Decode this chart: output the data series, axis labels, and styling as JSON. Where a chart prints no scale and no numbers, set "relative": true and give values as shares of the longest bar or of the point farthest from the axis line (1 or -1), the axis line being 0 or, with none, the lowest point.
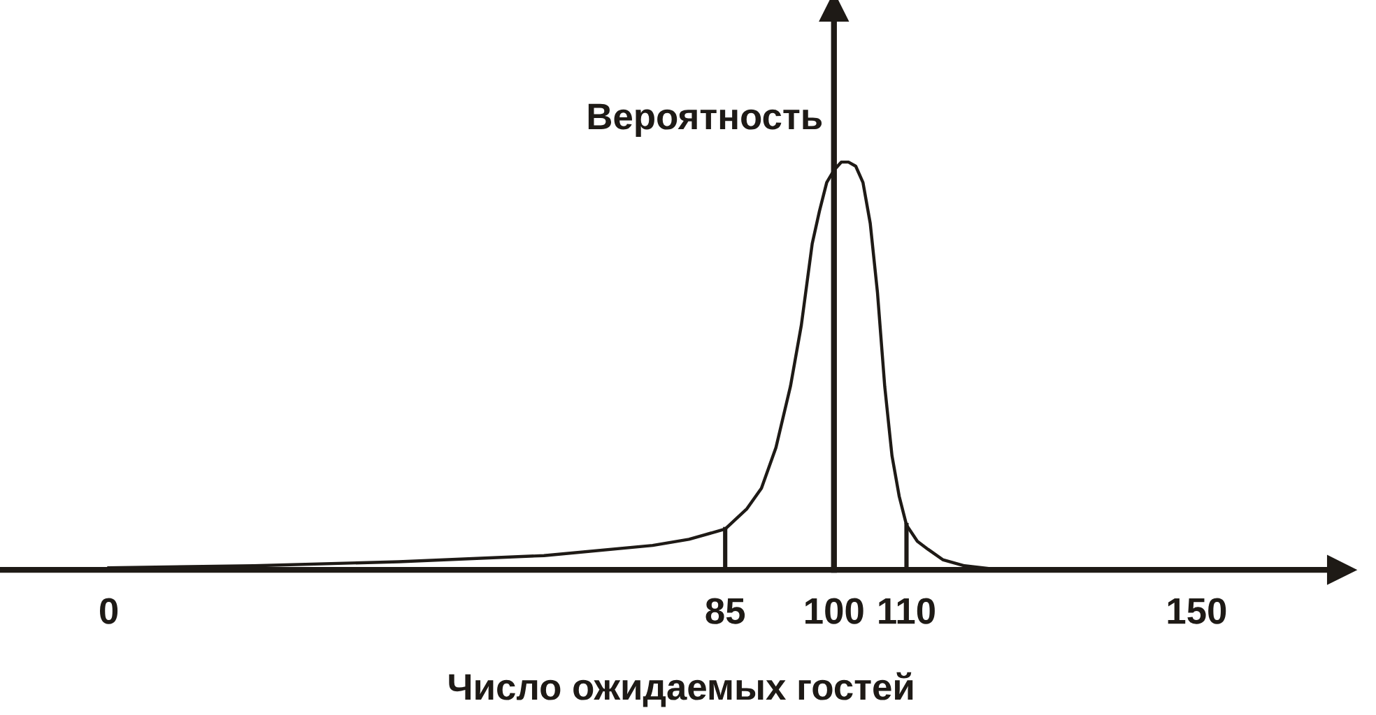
{
  "chart_data": {
    "type": "line",
    "relative": true,
    "xlabel": "Число ожидаемых гостей",
    "x": [
      0,
      20,
      40,
      60,
      75,
      80,
      85,
      88,
      90,
      92,
      94,
      95.5,
      97,
      98,
      99,
      100,
      101,
      102,
      103,
      104,
      105,
      106,
      107,
      108,
      109,
      110,
      111.5,
      113,
      115,
      118,
      123
    ],
    "series": [
      {
        "color": "#1e1a16",
        "values": [
          0.005,
          0.01,
          0.02,
          0.035,
          0.06,
          0.075,
          0.1,
          0.15,
          0.2,
          0.3,
          0.45,
          0.6,
          0.8,
          0.88,
          0.95,
          0.98,
          1.0,
          1.0,
          0.99,
          0.95,
          0.85,
          0.68,
          0.45,
          0.28,
          0.18,
          0.11,
          0.07,
          0.05,
          0.025,
          0.01,
          0.0
        ]
      }
    ],
    "xlim": [
      -15,
      170
    ],
    "xticks": [
      0,
      85,
      100,
      110,
      150
    ],
    "ref_lines": [
      {
        "axis": "x",
        "value": 100,
        "label": "Вероятность",
        "color": "#1e1a16"
      },
      {
        "axis": "x",
        "value": 85,
        "label": null,
        "color": "#1e1a16"
      },
      {
        "axis": "x",
        "value": 110,
        "label": null,
        "color": "#1e1a16"
      }
    ],
    "grid": false,
    "marker": "none",
    "line_style": "solid"
  }
}
